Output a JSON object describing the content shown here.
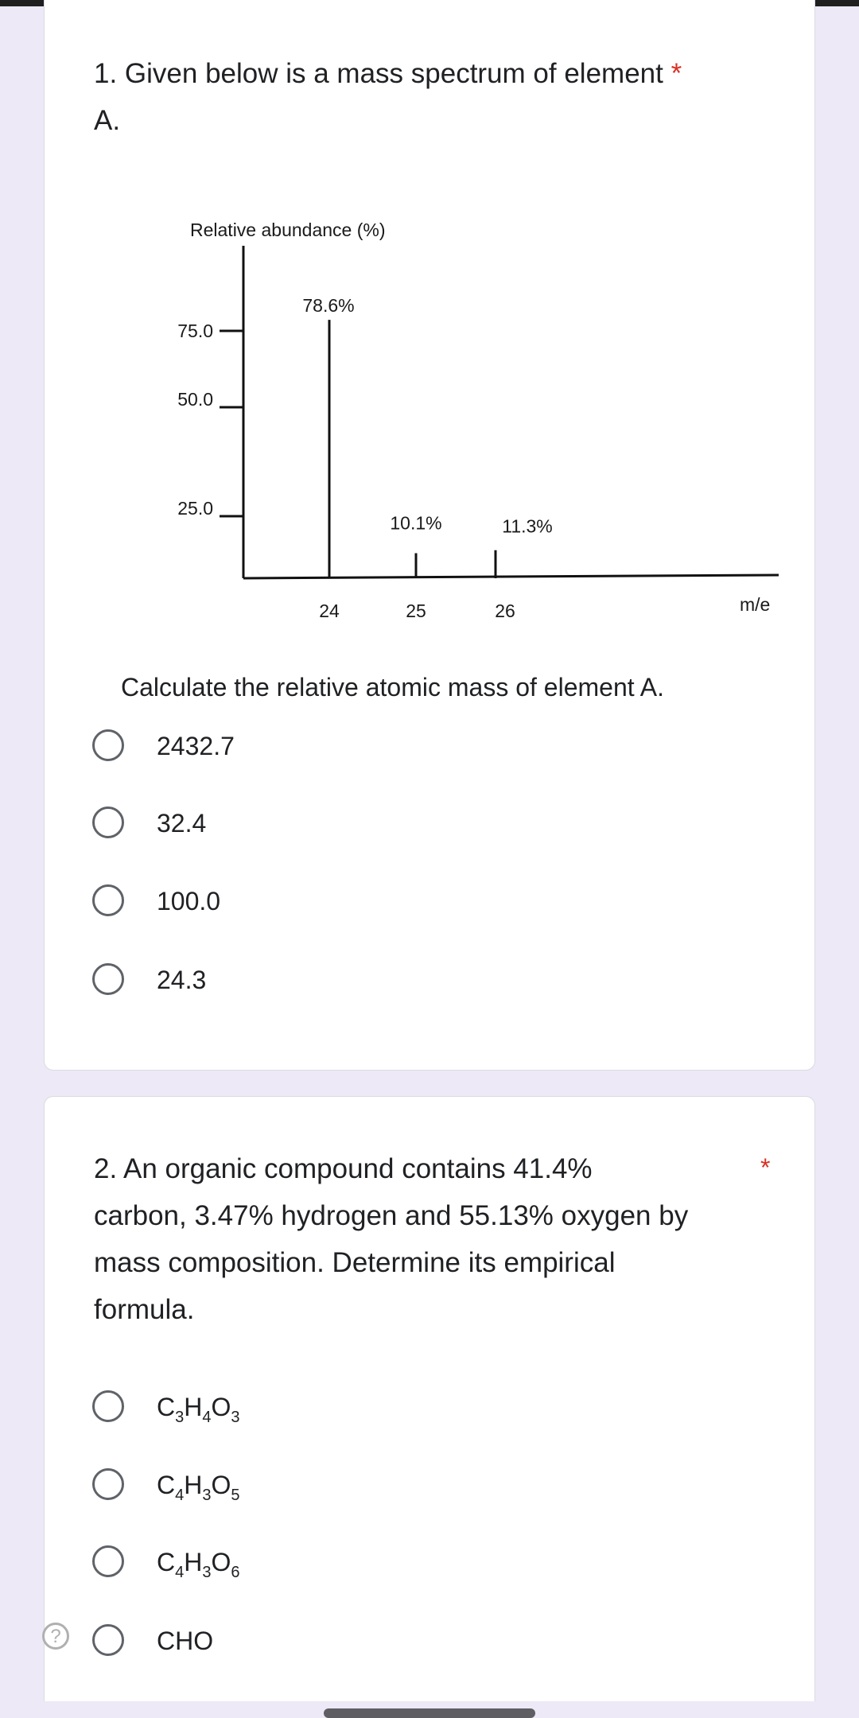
{
  "q1": {
    "number_title": "1. Given below is a mass spectrum of element",
    "title_cont": "A.",
    "required_mark": "*",
    "prompt": "Calculate the relative atomic mass of element A.",
    "options": [
      "2432.7",
      "32.4",
      "100.0",
      "24.3"
    ],
    "selected": null
  },
  "chart_data": {
    "type": "bar",
    "ylabel": "Relative abundance (%)",
    "xlabel": "m/e",
    "categories": [
      "24",
      "25",
      "26"
    ],
    "values": [
      78.6,
      10.1,
      11.3
    ],
    "data_labels": [
      "78.6%",
      "10.1%",
      "11.3%"
    ],
    "yticks": [
      "75.0",
      "50.0",
      "25.0"
    ],
    "ytick_values": [
      75,
      50,
      25
    ],
    "ylim": [
      0,
      90
    ],
    "grid": false
  },
  "q2": {
    "lines": [
      "2. An organic compound contains 41.4%",
      "carbon, 3.47% hydrogen and 55.13% oxygen by",
      "mass composition.  Determine its empirical",
      "formula."
    ],
    "required_mark": "*",
    "options": [
      [
        [
          "C",
          "3"
        ],
        [
          "H",
          "4"
        ],
        [
          "O",
          "3"
        ]
      ],
      [
        [
          "C",
          "4"
        ],
        [
          "H",
          "3"
        ],
        [
          "O",
          "5"
        ]
      ],
      [
        [
          "C",
          "4"
        ],
        [
          "H",
          "3"
        ],
        [
          "O",
          "6"
        ]
      ],
      [
        [
          "CHO",
          ""
        ]
      ]
    ]
  },
  "help_icon": "?",
  "colors": {
    "background": "#ede9f7",
    "required": "#d93025",
    "radio": "#5f6368"
  }
}
